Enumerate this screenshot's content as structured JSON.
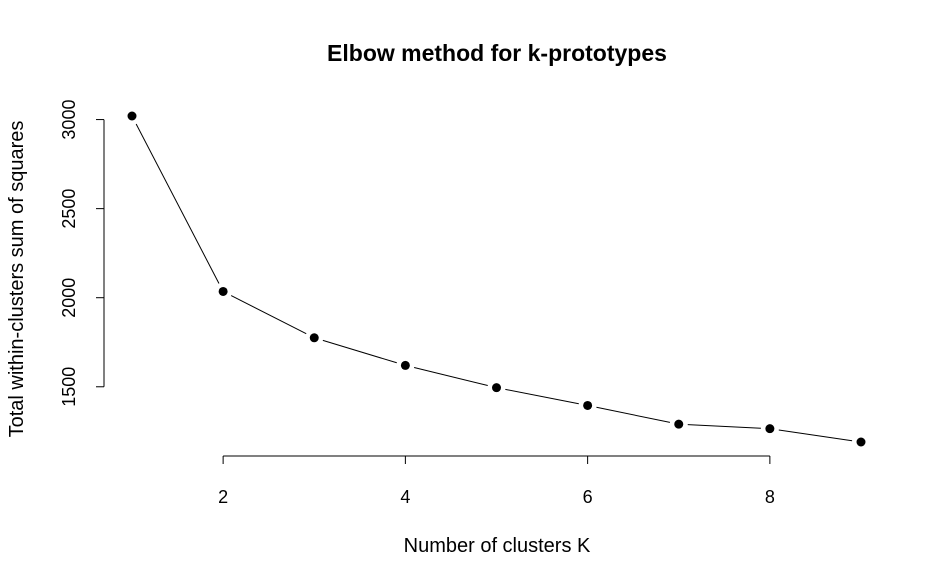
{
  "chart_data": {
    "type": "line",
    "title": "Elbow method for k-prototypes",
    "xlabel": "Number of clusters K",
    "ylabel": "Total within-clusters sum of squares",
    "x": [
      1,
      2,
      3,
      4,
      5,
      6,
      7,
      8,
      9
    ],
    "series": [
      {
        "values": [
          3020,
          2035,
          1775,
          1620,
          1495,
          1395,
          1290,
          1265,
          1190
        ]
      }
    ],
    "xlim": [
      1,
      9
    ],
    "ylim": [
      1190,
      3020
    ],
    "x_ticks": [
      2,
      4,
      6,
      8
    ],
    "x_tick_labels": [
      "2",
      "4",
      "6",
      "8"
    ],
    "y_ticks": [
      1500,
      2000,
      2500,
      3000
    ],
    "y_tick_labels": [
      "1500",
      "2000",
      "2500",
      "3000"
    ],
    "grid": false,
    "legend": "none",
    "style": "points connected by lines (type b)",
    "colors": {
      "line": "#000000",
      "points": "#000000",
      "background": "#ffffff"
    }
  }
}
